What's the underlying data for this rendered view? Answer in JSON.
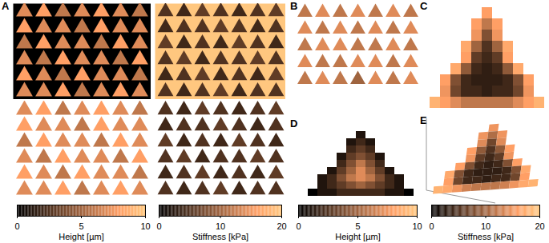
{
  "chart_data": [
    {
      "type": "heatmap",
      "panel": "A",
      "height_colorbar": {
        "label": "Height [µm]",
        "range": [
          0,
          10
        ],
        "ticks": [
          0,
          5,
          10
        ]
      },
      "stiffness_colorbar": {
        "label": "Stiffness [kPa]",
        "range": [
          0,
          20
        ],
        "ticks": [
          0,
          10,
          20
        ]
      },
      "height_background": 0,
      "stiffness_background": 20,
      "height": [
        [
          7,
          8,
          6,
          7,
          8,
          7,
          6
        ],
        [
          8,
          7,
          7,
          6,
          8,
          7,
          7
        ],
        [
          6,
          8,
          7,
          7,
          6,
          8,
          7
        ],
        [
          7,
          6,
          8,
          7,
          7,
          6,
          8
        ],
        [
          8,
          7,
          6,
          8,
          7,
          7,
          6
        ],
        [
          7,
          7,
          8,
          6,
          7,
          8,
          7
        ]
      ],
      "stiffness": [
        [
          5,
          4,
          6,
          5,
          4,
          5,
          6
        ],
        [
          4,
          5,
          5,
          6,
          5,
          4,
          5
        ],
        [
          6,
          4,
          5,
          4,
          6,
          5,
          4
        ],
        [
          5,
          6,
          4,
          5,
          5,
          6,
          5
        ],
        [
          4,
          5,
          6,
          4,
          5,
          4,
          6
        ],
        [
          5,
          4,
          5,
          6,
          4,
          5,
          5
        ]
      ]
    },
    {
      "type": "heatmap",
      "panel": "B",
      "height": [
        [
          6,
          7,
          6,
          7,
          6,
          7,
          6
        ],
        [
          7,
          6,
          7,
          6,
          7,
          6,
          7
        ],
        [
          6,
          7,
          7,
          6,
          6,
          7,
          6
        ],
        [
          7,
          6,
          6,
          7,
          7,
          6,
          7
        ],
        [
          6,
          7,
          6,
          5,
          7,
          6,
          7
        ]
      ]
    },
    {
      "type": "heatmap",
      "panel": "C",
      "stiffness": [
        [
          null,
          null,
          null,
          null,
          null,
          16,
          null,
          null,
          null,
          null,
          null
        ],
        [
          null,
          null,
          null,
          null,
          16,
          12,
          16,
          null,
          null,
          null,
          null
        ],
        [
          null,
          null,
          null,
          null,
          15,
          8,
          15,
          null,
          null,
          null,
          null
        ],
        [
          null,
          null,
          null,
          17,
          10,
          5,
          10,
          17,
          null,
          null,
          null
        ],
        [
          null,
          null,
          null,
          16,
          6,
          4,
          6,
          16,
          null,
          null,
          null
        ],
        [
          null,
          null,
          17,
          9,
          4,
          3,
          4,
          9,
          17,
          null,
          null
        ],
        [
          null,
          16,
          8,
          4,
          3,
          3,
          3,
          4,
          8,
          16,
          null
        ],
        [
          null,
          15,
          7,
          4,
          4,
          3,
          4,
          4,
          7,
          15,
          null
        ],
        [
          18,
          16,
          14,
          12,
          12,
          12,
          12,
          12,
          14,
          16,
          18
        ]
      ]
    },
    {
      "type": "heatmap",
      "panel": "D",
      "height_colorbar": {
        "label": "Height [µm]",
        "range": [
          0,
          10
        ],
        "ticks": [
          0,
          5,
          10
        ]
      },
      "height": [
        [
          null,
          null,
          null,
          null,
          null,
          1,
          null,
          null,
          null,
          null,
          null
        ],
        [
          null,
          null,
          null,
          null,
          1,
          2,
          1,
          null,
          null,
          null,
          null
        ],
        [
          null,
          null,
          null,
          null,
          2,
          3,
          2,
          null,
          null,
          null,
          null
        ],
        [
          null,
          null,
          null,
          1,
          3,
          4,
          3,
          1,
          null,
          null,
          null
        ],
        [
          null,
          null,
          null,
          2,
          4,
          6,
          4,
          2,
          null,
          null,
          null
        ],
        [
          null,
          null,
          1,
          3,
          5,
          7,
          5,
          3,
          1,
          null,
          null
        ],
        [
          null,
          1,
          2,
          4,
          6,
          7,
          6,
          4,
          2,
          1,
          null
        ],
        [
          null,
          1,
          2,
          3,
          4,
          5,
          4,
          3,
          2,
          1,
          null
        ],
        [
          0,
          1,
          1,
          2,
          2,
          2,
          2,
          2,
          1,
          1,
          0
        ]
      ]
    },
    {
      "type": "heatmap",
      "panel": "E",
      "stiffness_colorbar": {
        "label": "Stiffness [kPa]",
        "range": [
          0,
          20
        ],
        "ticks": [
          0,
          10,
          20
        ]
      },
      "stiffness": [
        [
          null,
          null,
          null,
          null,
          null,
          15,
          null,
          null,
          null,
          null,
          null
        ],
        [
          null,
          null,
          null,
          null,
          15,
          11,
          15,
          null,
          null,
          null,
          null
        ],
        [
          null,
          null,
          null,
          null,
          14,
          7,
          14,
          null,
          null,
          null,
          null
        ],
        [
          null,
          null,
          null,
          16,
          9,
          5,
          9,
          16,
          null,
          null,
          null
        ],
        [
          null,
          null,
          null,
          15,
          6,
          4,
          6,
          15,
          null,
          null,
          null
        ],
        [
          null,
          null,
          16,
          8,
          4,
          3,
          4,
          8,
          16,
          null,
          null
        ],
        [
          null,
          17,
          8,
          4,
          3,
          3,
          3,
          4,
          8,
          17,
          null
        ],
        [
          null,
          16,
          7,
          4,
          4,
          3,
          4,
          4,
          7,
          16,
          null
        ],
        [
          18,
          17,
          15,
          13,
          12,
          12,
          12,
          13,
          15,
          17,
          18
        ]
      ]
    }
  ]
}
